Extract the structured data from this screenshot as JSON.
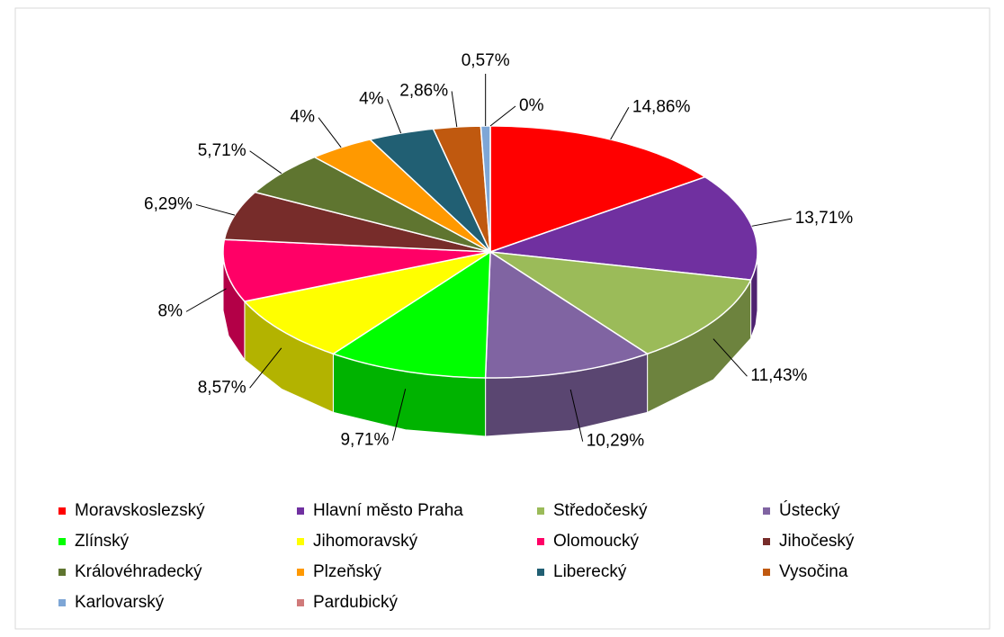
{
  "chart_data": {
    "type": "pie",
    "3d": true,
    "categories": [
      "Moravskoslezský",
      "Hlavní město Praha",
      "Středočeský",
      "Ústecký",
      "Zlínský",
      "Jihomoravský",
      "Olomoucký",
      "Jihočeský",
      "Královéhradecký",
      "Plzeňský",
      "Liberecký",
      "Vysočina",
      "Karlovarský",
      "Pardubický"
    ],
    "values": [
      14.86,
      13.71,
      11.43,
      10.29,
      9.71,
      8.57,
      8,
      6.29,
      5.71,
      4,
      4,
      2.86,
      0.57,
      0
    ],
    "value_labels": [
      "14,86%",
      "13,71%",
      "11,43%",
      "10,29%",
      "9,71%",
      "8,57%",
      "8%",
      "6,29%",
      "5,71%",
      "4%",
      "4%",
      "2,86%",
      "0,57%",
      "0%"
    ],
    "colors": [
      "#ff0000",
      "#7030a0",
      "#9bbb59",
      "#8064a2",
      "#00ff00",
      "#ffff00",
      "#ff0066",
      "#772c2a",
      "#5f7530",
      "#ff9900",
      "#215f73",
      "#c0590f",
      "#7ea6d6",
      "#d07a7a"
    ],
    "legend": "bottom"
  }
}
